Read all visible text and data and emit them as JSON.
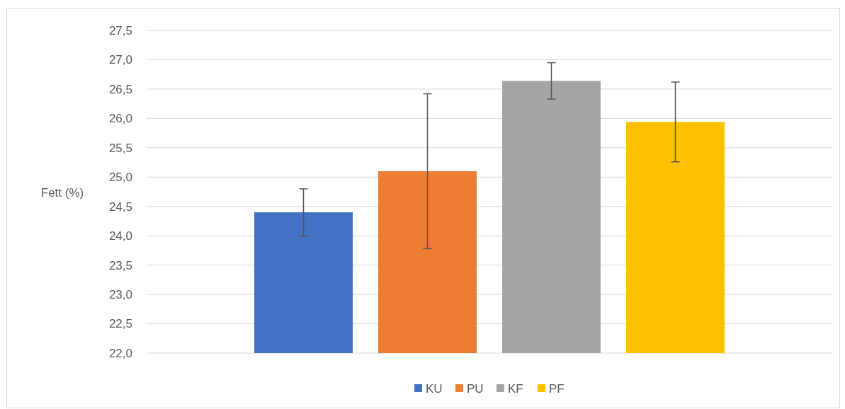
{
  "chart_data": {
    "type": "bar",
    "ylabel": "Fett (%)",
    "categories": [
      null
    ],
    "series": [
      {
        "name": "KU",
        "color": "#4472c4",
        "values": [
          24.4
        ],
        "errors": [
          0.4
        ]
      },
      {
        "name": "PU",
        "color": "#ed7d31",
        "values": [
          25.1
        ],
        "errors": [
          1.32
        ]
      },
      {
        "name": "KF",
        "color": "#a5a5a5",
        "values": [
          26.64
        ],
        "errors": [
          0.31
        ]
      },
      {
        "name": "PF",
        "color": "#ffc000",
        "values": [
          25.94
        ],
        "errors": [
          0.68
        ]
      }
    ],
    "ylim": [
      22,
      27.5
    ],
    "yticks": [
      {
        "value": 22,
        "label": "22,0"
      },
      {
        "value": 22.5,
        "label": "22,5"
      },
      {
        "value": 23,
        "label": "23,0"
      },
      {
        "value": 23.5,
        "label": "23,5"
      },
      {
        "value": 24,
        "label": "24,0"
      },
      {
        "value": 24.5,
        "label": "24,5"
      },
      {
        "value": 25,
        "label": "25,0"
      },
      {
        "value": 25.5,
        "label": "25,5"
      },
      {
        "value": 26,
        "label": "26,0"
      },
      {
        "value": 26.5,
        "label": "26,5"
      },
      {
        "value": 27,
        "label": "27,0"
      },
      {
        "value": 27.5,
        "label": "27,5"
      }
    ],
    "grid": "y",
    "legend": "bottom"
  }
}
